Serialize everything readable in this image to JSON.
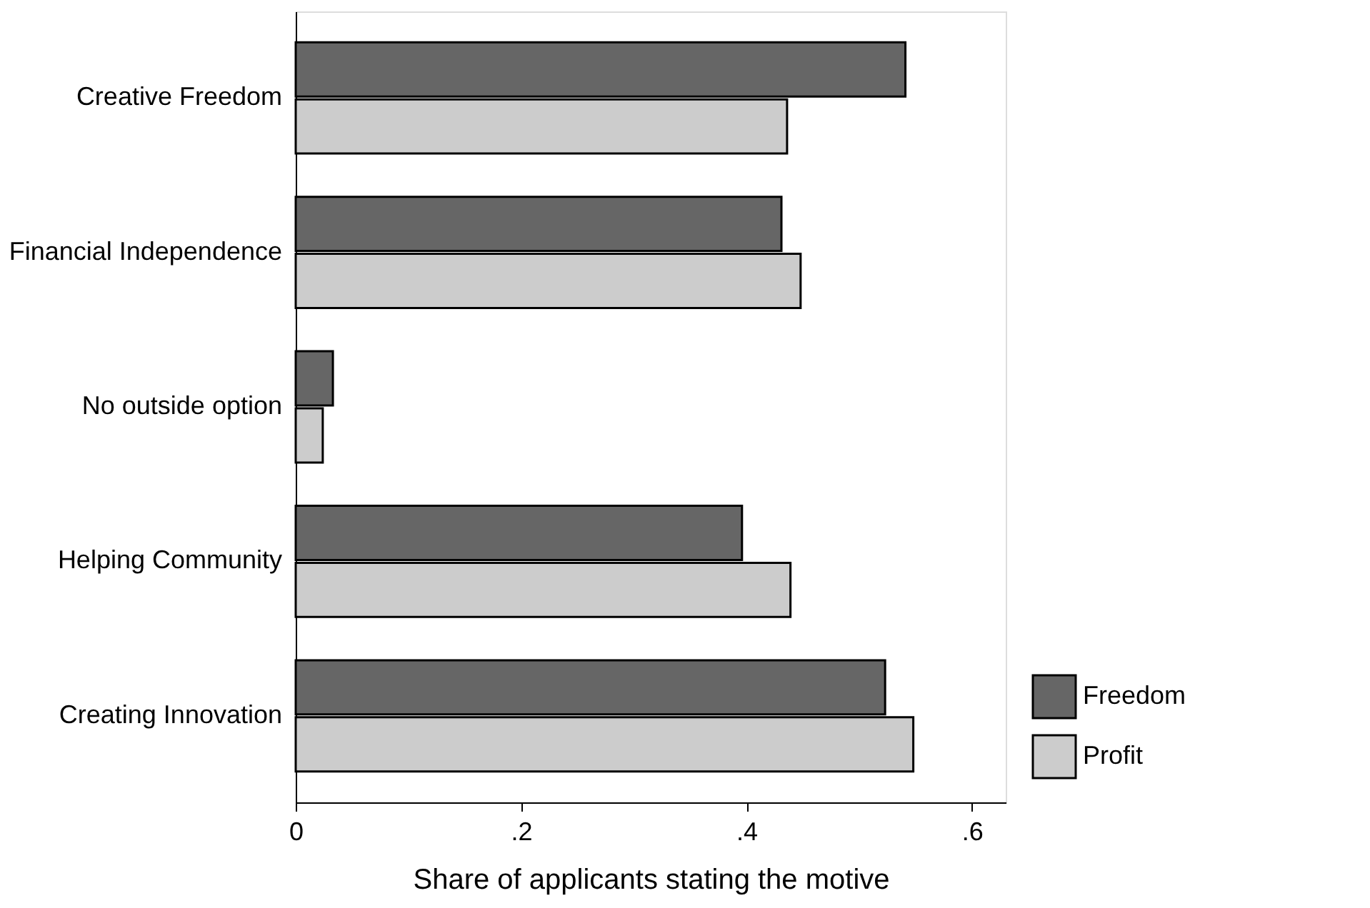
{
  "chart_data": {
    "type": "bar",
    "orientation": "horizontal",
    "xlabel": "Share of applicants stating the motive",
    "categories": [
      "Creative Freedom",
      "Financial Independence",
      "No outside option",
      "Helping Community",
      "Creating Innovation"
    ],
    "series": [
      {
        "name": "Freedom",
        "color": "#666666",
        "values": [
          0.541,
          0.431,
          0.033,
          0.396,
          0.523
        ]
      },
      {
        "name": "Profit",
        "color": "#cccccc",
        "values": [
          0.436,
          0.448,
          0.024,
          0.439,
          0.548
        ]
      }
    ],
    "xlim": [
      0,
      0.63
    ],
    "xticks": [
      0,
      {
        "value": 0.2,
        "label": ".2"
      },
      {
        "value": 0.4,
        "label": ".4"
      },
      {
        "value": 0.6,
        "label": ".6"
      }
    ],
    "grid": false,
    "legend": "bottom right"
  }
}
